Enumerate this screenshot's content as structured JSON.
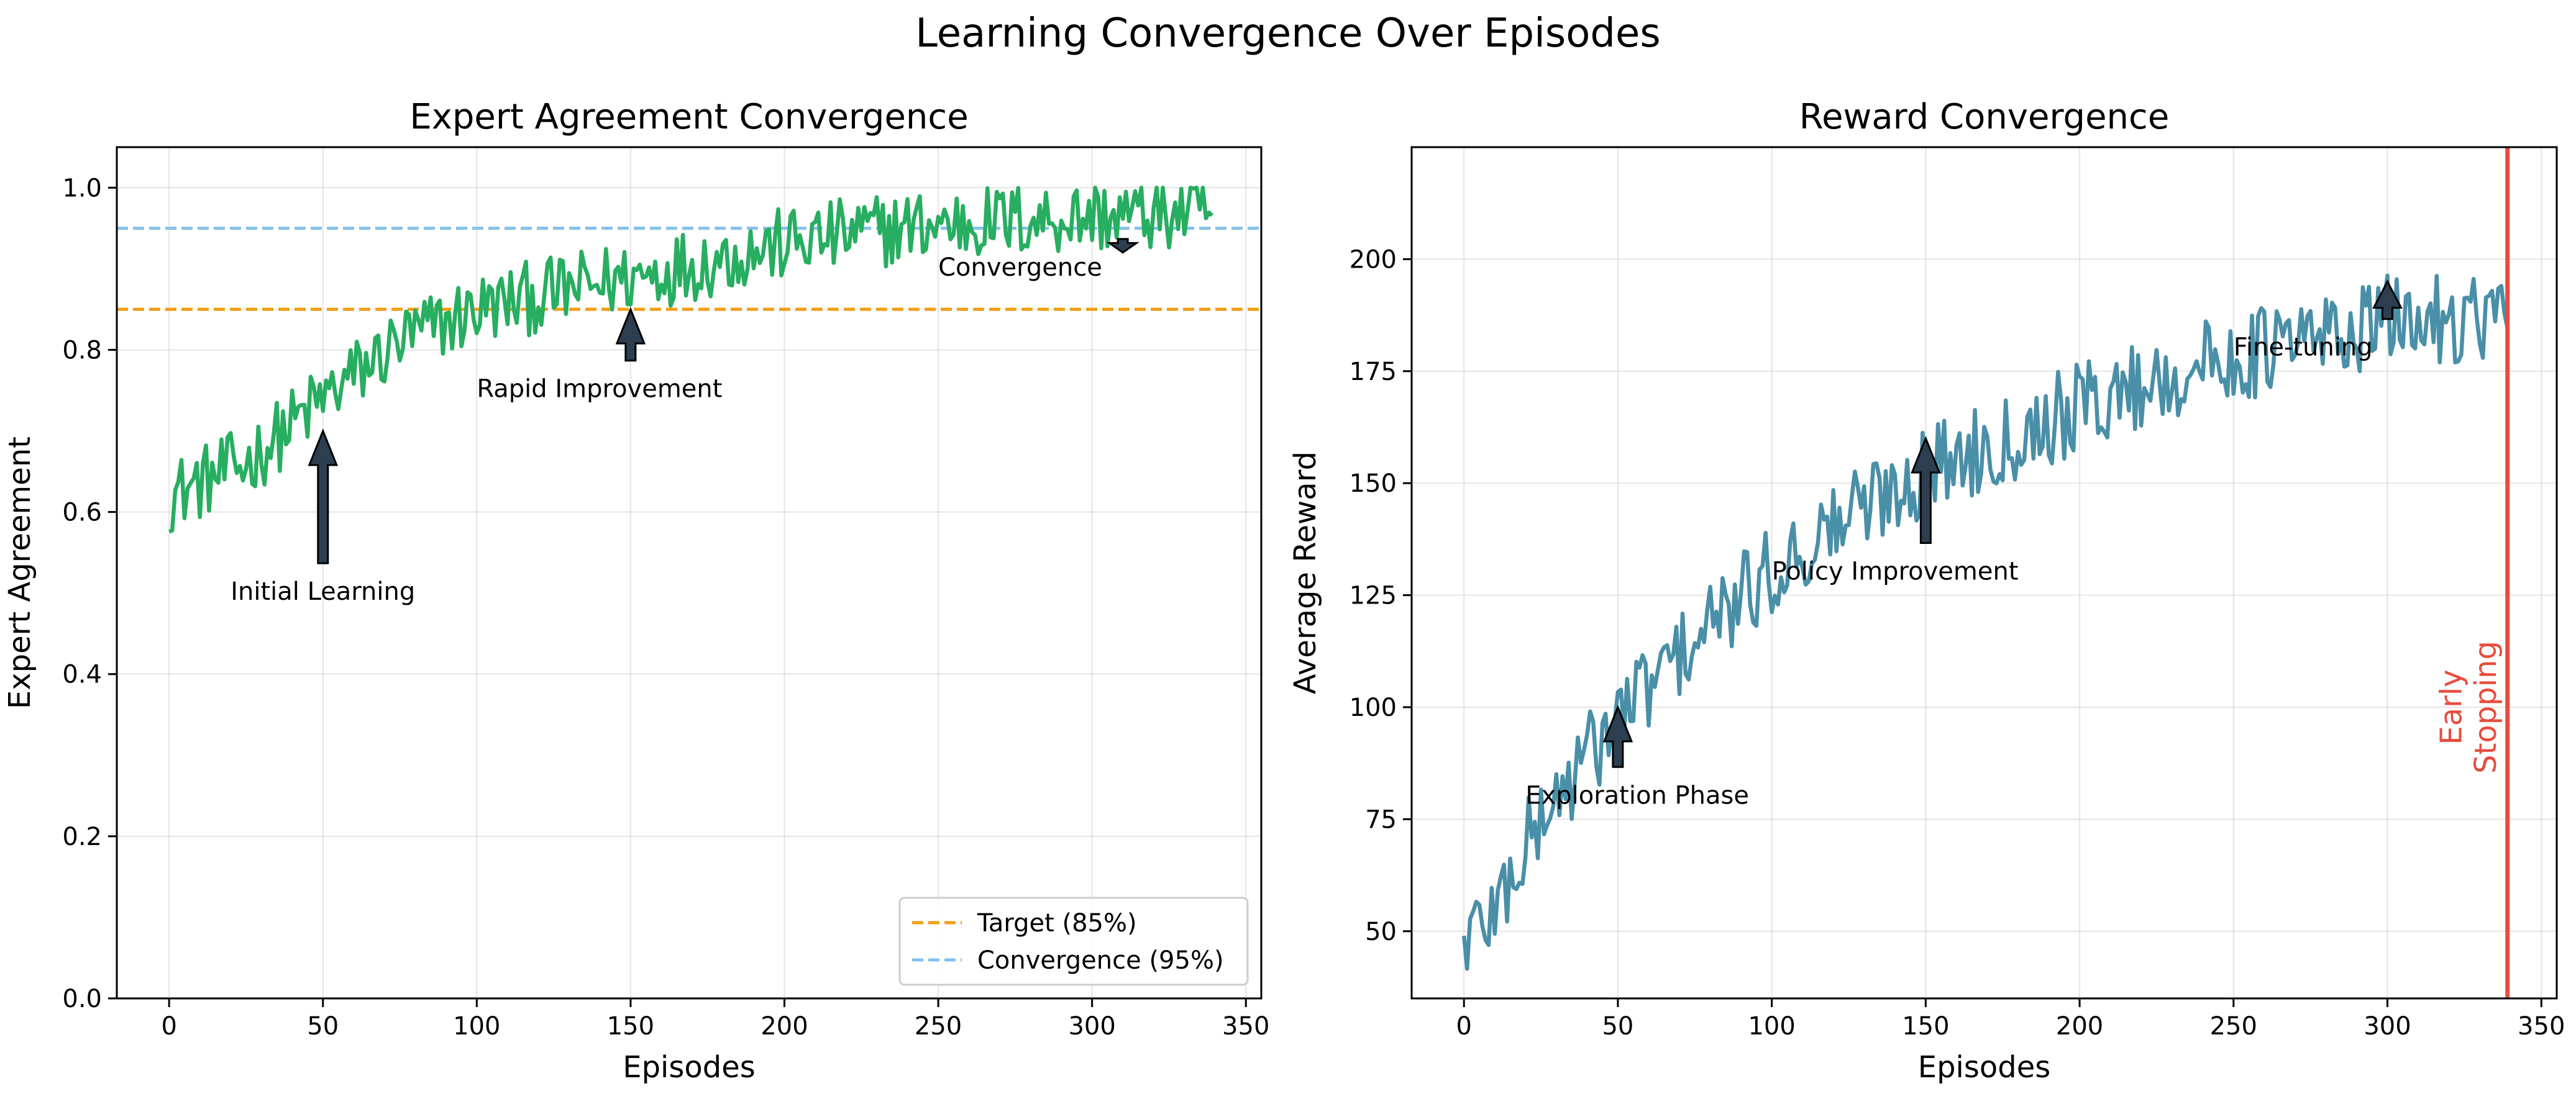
{
  "figure_title": "Learning Convergence Over Episodes",
  "chart_data": [
    {
      "type": "line",
      "title": "Expert Agreement Convergence",
      "xlabel": "Episodes",
      "ylabel": "Expert Agreement",
      "xlim": [
        -17,
        355
      ],
      "ylim": [
        0.0,
        1.05
      ],
      "xticks": [
        0,
        50,
        100,
        150,
        200,
        250,
        300,
        350
      ],
      "xtick_labels": [
        "0",
        "50",
        "100",
        "150",
        "200",
        "250",
        "300",
        "350"
      ],
      "yticks": [
        0.0,
        0.2,
        0.4,
        0.6,
        0.8,
        1.0
      ],
      "ytick_labels": [
        "0.0",
        "0.2",
        "0.4",
        "0.6",
        "0.8",
        "1.0"
      ],
      "grid": true,
      "legend_position": "bottom-right",
      "episodes": 340,
      "series": [
        {
          "color": "#27ae60",
          "trend_points": [
            [
              0,
              0.62
            ],
            [
              25,
              0.66
            ],
            [
              50,
              0.74
            ],
            [
              75,
              0.81
            ],
            [
              100,
              0.85
            ],
            [
              125,
              0.87
            ],
            [
              150,
              0.89
            ],
            [
              175,
              0.91
            ],
            [
              200,
              0.93
            ],
            [
              225,
              0.945
            ],
            [
              250,
              0.955
            ],
            [
              275,
              0.96
            ],
            [
              300,
              0.965
            ],
            [
              339,
              0.97
            ]
          ],
          "noise": 0.04,
          "max": 1.0
        }
      ],
      "reference_lines": [
        {
          "name": "Target (85%)",
          "y": 0.85,
          "color": "#f39c12"
        },
        {
          "name": "Convergence (95%)",
          "y": 0.95,
          "color": "#85c1e9"
        }
      ],
      "annotations": [
        {
          "text": "Initial Learning",
          "x": 50,
          "y": 0.7,
          "text_x": 20,
          "text_y": 0.5
        },
        {
          "text": "Rapid Improvement",
          "x": 150,
          "y": 0.85,
          "text_x": 100,
          "text_y": 0.75
        },
        {
          "text": "Convergence",
          "x": 310,
          "y": 0.92,
          "text_x": 250,
          "text_y": 0.9
        }
      ]
    },
    {
      "type": "line",
      "title": "Reward Convergence",
      "xlabel": "Episodes",
      "ylabel": "Average Reward",
      "xlim": [
        -17,
        355
      ],
      "ylim": [
        35,
        225
      ],
      "xticks": [
        0,
        50,
        100,
        150,
        200,
        250,
        300,
        350
      ],
      "xtick_labels": [
        "0",
        "50",
        "100",
        "150",
        "200",
        "250",
        "300",
        "350"
      ],
      "yticks": [
        50,
        75,
        100,
        125,
        150,
        175,
        200
      ],
      "ytick_labels": [
        "50",
        "75",
        "100",
        "125",
        "150",
        "175",
        "200"
      ],
      "grid": true,
      "episodes": 340,
      "series": [
        {
          "color": "#4a8fa8",
          "trend_points": [
            [
              0,
              48
            ],
            [
              10,
              55
            ],
            [
              25,
              75
            ],
            [
              50,
              98
            ],
            [
              75,
              115
            ],
            [
              100,
              130
            ],
            [
              125,
              143
            ],
            [
              150,
              153
            ],
            [
              175,
              160
            ],
            [
              200,
              167
            ],
            [
              225,
              173
            ],
            [
              250,
              178
            ],
            [
              275,
              182
            ],
            [
              300,
              186
            ],
            [
              339,
              188
            ]
          ],
          "noise": 9
        }
      ],
      "vertical_line": {
        "x": 339,
        "color": "#e74c3c",
        "label": "Early\nStopping",
        "label_x": 325,
        "label_y": 100
      },
      "annotations": [
        {
          "text": "Exploration Phase",
          "x": 50,
          "y": 100,
          "text_x": 20,
          "text_y": 80
        },
        {
          "text": "Policy Improvement",
          "x": 150,
          "y": 160,
          "text_x": 100,
          "text_y": 130
        },
        {
          "text": "Fine-tuning",
          "x": 300,
          "y": 195,
          "text_x": 250,
          "text_y": 180
        }
      ]
    }
  ]
}
